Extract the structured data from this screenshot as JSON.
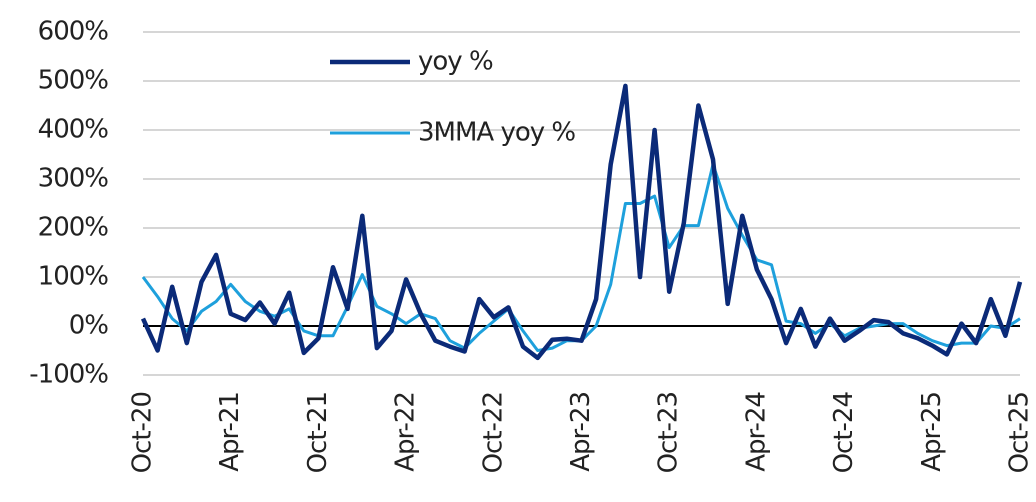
{
  "chart_data": {
    "type": "line",
    "categories": [
      "Oct-20",
      null,
      null,
      null,
      null,
      null,
      "Apr-21",
      null,
      null,
      null,
      null,
      null,
      "Oct-21",
      null,
      null,
      null,
      null,
      null,
      "Apr-22",
      null,
      null,
      null,
      null,
      null,
      "Oct-22",
      null,
      null,
      null,
      null,
      null,
      "Apr-23",
      null,
      null,
      null,
      null,
      null,
      "Oct-23",
      null,
      null,
      null,
      null,
      null,
      "Apr-24",
      null,
      null,
      null,
      null,
      null,
      "Oct-24",
      null,
      null,
      null,
      null,
      null,
      "Apr-25",
      null,
      null,
      null,
      null,
      null,
      "Oct-25"
    ],
    "series": [
      {
        "name": "yoy %",
        "color": "#0b2a78",
        "values": [
          15,
          -50,
          80,
          -35,
          90,
          145,
          25,
          12,
          48,
          5,
          68,
          -55,
          -25,
          120,
          35,
          225,
          -45,
          -10,
          95,
          25,
          -30,
          -42,
          -52,
          55,
          18,
          38,
          -42,
          -65,
          -28,
          -26,
          -30,
          55,
          330,
          490,
          100,
          400,
          70,
          210,
          450,
          340,
          45,
          225,
          115,
          55,
          -35,
          35,
          -42,
          15,
          -30,
          -10,
          12,
          8,
          -15,
          -25,
          -40,
          -58,
          5,
          -35,
          55,
          -20,
          90
        ]
      },
      {
        "name": "3MMA yoy %",
        "color": "#1ea0dc",
        "values": [
          100,
          60,
          15,
          -10,
          30,
          50,
          85,
          50,
          30,
          20,
          35,
          -10,
          -20,
          -20,
          40,
          105,
          40,
          25,
          5,
          25,
          15,
          -30,
          -45,
          -15,
          10,
          35,
          -10,
          -50,
          -45,
          -30,
          -30,
          0,
          85,
          250,
          250,
          265,
          160,
          205,
          205,
          330,
          240,
          185,
          135,
          125,
          10,
          5,
          -15,
          5,
          -20,
          -5,
          0,
          5,
          5,
          -15,
          -30,
          -40,
          -35,
          -35,
          0,
          -5,
          15
        ]
      }
    ],
    "ylim": [
      -100,
      600
    ],
    "yticks": [
      {
        "value": -100,
        "label": "-100%"
      },
      {
        "value": 0,
        "label": "0%"
      },
      {
        "value": 100,
        "label": "100%"
      },
      {
        "value": 200,
        "label": "200%"
      },
      {
        "value": 300,
        "label": "300%"
      },
      {
        "value": 400,
        "label": "400%"
      },
      {
        "value": 500,
        "label": "500%"
      },
      {
        "value": 600,
        "label": "600%"
      }
    ],
    "grid": true
  }
}
